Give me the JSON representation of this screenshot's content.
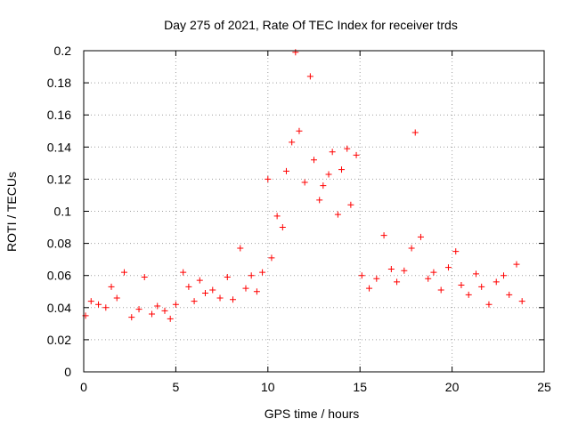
{
  "chart_data": {
    "type": "scatter",
    "title": "Day 275 of 2021, Rate Of TEC Index for receiver trds",
    "xlabel": "GPS time / hours",
    "ylabel": "ROTI / TECUs",
    "xlim": [
      0,
      25
    ],
    "ylim": [
      0,
      0.2
    ],
    "xticks": [
      "0",
      "5",
      "10",
      "15",
      "20",
      "25"
    ],
    "yticks": [
      "0",
      "0.02",
      "0.04",
      "0.06",
      "0.08",
      "0.1",
      "0.12",
      "0.14",
      "0.16",
      "0.18",
      "0.2"
    ],
    "grid": true,
    "marker": "+",
    "series": [
      {
        "color": "#ff0000",
        "x": [
          0.1,
          0.4,
          0.8,
          1.2,
          1.5,
          1.8,
          2.2,
          2.6,
          3.0,
          3.3,
          3.7,
          4.0,
          4.4,
          4.7,
          5.0,
          5.4,
          5.7,
          6.0,
          6.3,
          6.6,
          7.0,
          7.4,
          7.8,
          8.1,
          8.5,
          8.8,
          9.1,
          9.4,
          9.7,
          10.0,
          10.2,
          10.5,
          10.8,
          11.0,
          11.3,
          11.5,
          11.7,
          12.0,
          12.3,
          12.5,
          12.8,
          13.0,
          13.3,
          13.5,
          13.8,
          14.0,
          14.3,
          14.5,
          14.8,
          15.1,
          15.5,
          15.9,
          16.3,
          16.7,
          17.0,
          17.4,
          17.8,
          18.0,
          18.3,
          18.7,
          19.0,
          19.4,
          19.8,
          20.2,
          20.5,
          20.9,
          21.3,
          21.6,
          22.0,
          22.4,
          22.8,
          23.1,
          23.5,
          23.8
        ],
        "y": [
          0.035,
          0.044,
          0.042,
          0.04,
          0.053,
          0.046,
          0.062,
          0.034,
          0.039,
          0.059,
          0.036,
          0.041,
          0.038,
          0.033,
          0.042,
          0.062,
          0.053,
          0.044,
          0.057,
          0.049,
          0.051,
          0.046,
          0.059,
          0.045,
          0.077,
          0.052,
          0.06,
          0.05,
          0.062,
          0.12,
          0.071,
          0.097,
          0.09,
          0.125,
          0.143,
          0.199,
          0.15,
          0.118,
          0.184,
          0.132,
          0.107,
          0.116,
          0.123,
          0.137,
          0.098,
          0.126,
          0.139,
          0.104,
          0.135,
          0.06,
          0.052,
          0.058,
          0.085,
          0.064,
          0.056,
          0.063,
          0.077,
          0.149,
          0.084,
          0.058,
          0.062,
          0.051,
          0.065,
          0.075,
          0.054,
          0.048,
          0.061,
          0.053,
          0.042,
          0.056,
          0.06,
          0.048,
          0.067,
          0.044
        ]
      }
    ]
  }
}
